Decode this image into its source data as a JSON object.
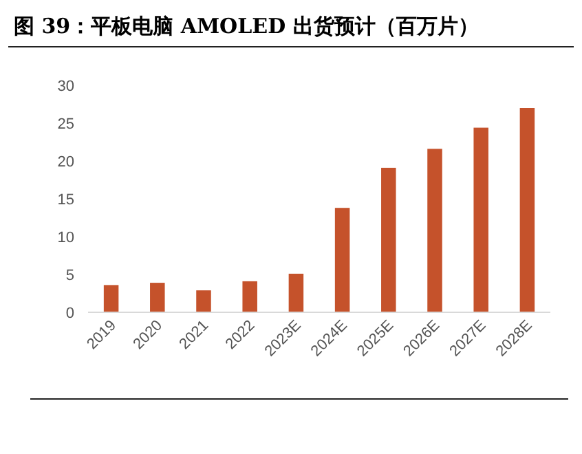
{
  "chart_data": {
    "type": "bar",
    "title": "图 39：平板电脑 AMOLED 出货预计（百万片）",
    "categories": [
      "2019",
      "2020",
      "2021",
      "2022",
      "2023E",
      "2024E",
      "2025E",
      "2026E",
      "2027E",
      "2028E"
    ],
    "values": [
      3.6,
      3.9,
      2.9,
      4.1,
      5.1,
      13.8,
      19.1,
      21.6,
      24.4,
      27.0
    ],
    "color": "#c5522b",
    "ylim": [
      0,
      30
    ],
    "yticks": [
      0,
      5,
      10,
      15,
      20,
      25,
      30
    ],
    "grid": false
  }
}
